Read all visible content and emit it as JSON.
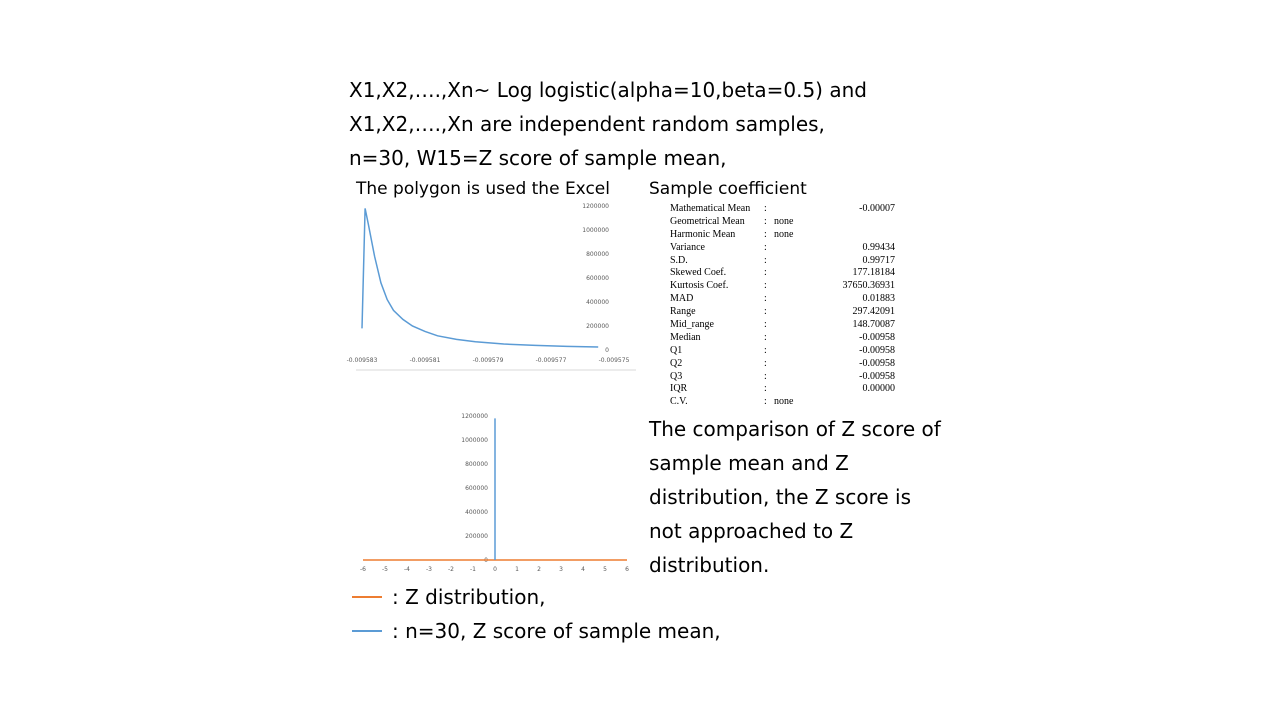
{
  "header_lines": [
    "X1,X2,….,Xn~ Log logistic(alpha=10,beta=0.5) and",
    "X1,X2,….,Xn are independent random samples,",
    "n=30, W15=Z score of sample mean,"
  ],
  "polygon_caption": "The polygon is used the Excel",
  "stats_title": "Sample coefficient",
  "stats": [
    {
      "label": "Mathematical Mean",
      "sep": ":",
      "value": "-0.00007"
    },
    {
      "label": "Geometrical Mean",
      "sep": ":",
      "value": "none"
    },
    {
      "label": "Harmonic Mean",
      "sep": ":",
      "value": "none"
    },
    {
      "label": "Variance",
      "sep": ":",
      "value": "0.99434"
    },
    {
      "label": "S.D.",
      "sep": ":",
      "value": "0.99717"
    },
    {
      "label": "Skewed Coef.",
      "sep": ":",
      "value": "177.18184"
    },
    {
      "label": "Kurtosis Coef.",
      "sep": ":",
      "value": "37650.36931"
    },
    {
      "label": "MAD",
      "sep": ":",
      "value": "0.01883"
    },
    {
      "label": "Range",
      "sep": ":",
      "value": "297.42091"
    },
    {
      "label": "Mid_range",
      "sep": ":",
      "value": "148.70087"
    },
    {
      "label": "Median",
      "sep": ":",
      "value": "-0.00958"
    },
    {
      "label": "Q1",
      "sep": ":",
      "value": "-0.00958"
    },
    {
      "label": "Q2",
      "sep": ":",
      "value": "-0.00958"
    },
    {
      "label": "Q3",
      "sep": ":",
      "value": "-0.00958"
    },
    {
      "label": "IQR",
      "sep": ":",
      "value": "0.00000"
    },
    {
      "label": "C.V.",
      "sep": ":",
      "value": "none"
    }
  ],
  "comparison_lines": [
    "The comparison of Z score of",
    "sample mean and Z",
    "distribution, the Z score is",
    "not approached to Z",
    "distribution."
  ],
  "legend": [
    {
      "label": ": Z distribution,",
      "color": "#ED7D31"
    },
    {
      "label": ":   n=30, Z score of sample mean,",
      "color": "#5B9BD5"
    }
  ],
  "chart_data": [
    {
      "type": "line",
      "title": "",
      "x_ticks": [
        "-0.009583",
        "-0.009581",
        "-0.009579",
        "-0.009577",
        "-0.009575"
      ],
      "y_ticks": [
        "0",
        "200000",
        "400000",
        "600000",
        "800000",
        "1000000",
        "1200000"
      ],
      "ylim": [
        0,
        1200000
      ],
      "series": [
        {
          "color": "#5B9BD5",
          "x": [
            -0.009583,
            -0.0095829,
            -0.0095828,
            -0.0095826,
            -0.0095824,
            -0.0095822,
            -0.009582,
            -0.0095817,
            -0.0095814,
            -0.009581,
            -0.0095806,
            -0.00958,
            -0.0095794,
            -0.0095785,
            -0.0095775,
            -0.0095765,
            -0.0095755
          ],
          "y": [
            180000,
            1180000,
            1050000,
            780000,
            560000,
            420000,
            330000,
            255000,
            200000,
            155000,
            118000,
            88000,
            68000,
            50000,
            38000,
            30000,
            25000
          ]
        }
      ]
    },
    {
      "type": "line",
      "title": "",
      "x_ticks": [
        "-6",
        "-5",
        "-4",
        "-3",
        "-2",
        "-1",
        "0",
        "1",
        "2",
        "3",
        "4",
        "5",
        "6"
      ],
      "y_ticks": [
        "0",
        "200000",
        "400000",
        "600000",
        "800000",
        "1000000",
        "1200000"
      ],
      "ylim": [
        0,
        1200000
      ],
      "xlim": [
        -6,
        6
      ],
      "series": [
        {
          "color": "#ED7D31",
          "x": [
            -6,
            -3,
            -1,
            0,
            1,
            3,
            6
          ],
          "y": [
            0,
            0.0044,
            0.242,
            0.399,
            0.242,
            0.0044,
            0
          ]
        },
        {
          "color": "#5B9BD5",
          "x": [
            0,
            0,
            0
          ],
          "y": [
            0,
            1180000,
            0
          ]
        }
      ]
    }
  ]
}
